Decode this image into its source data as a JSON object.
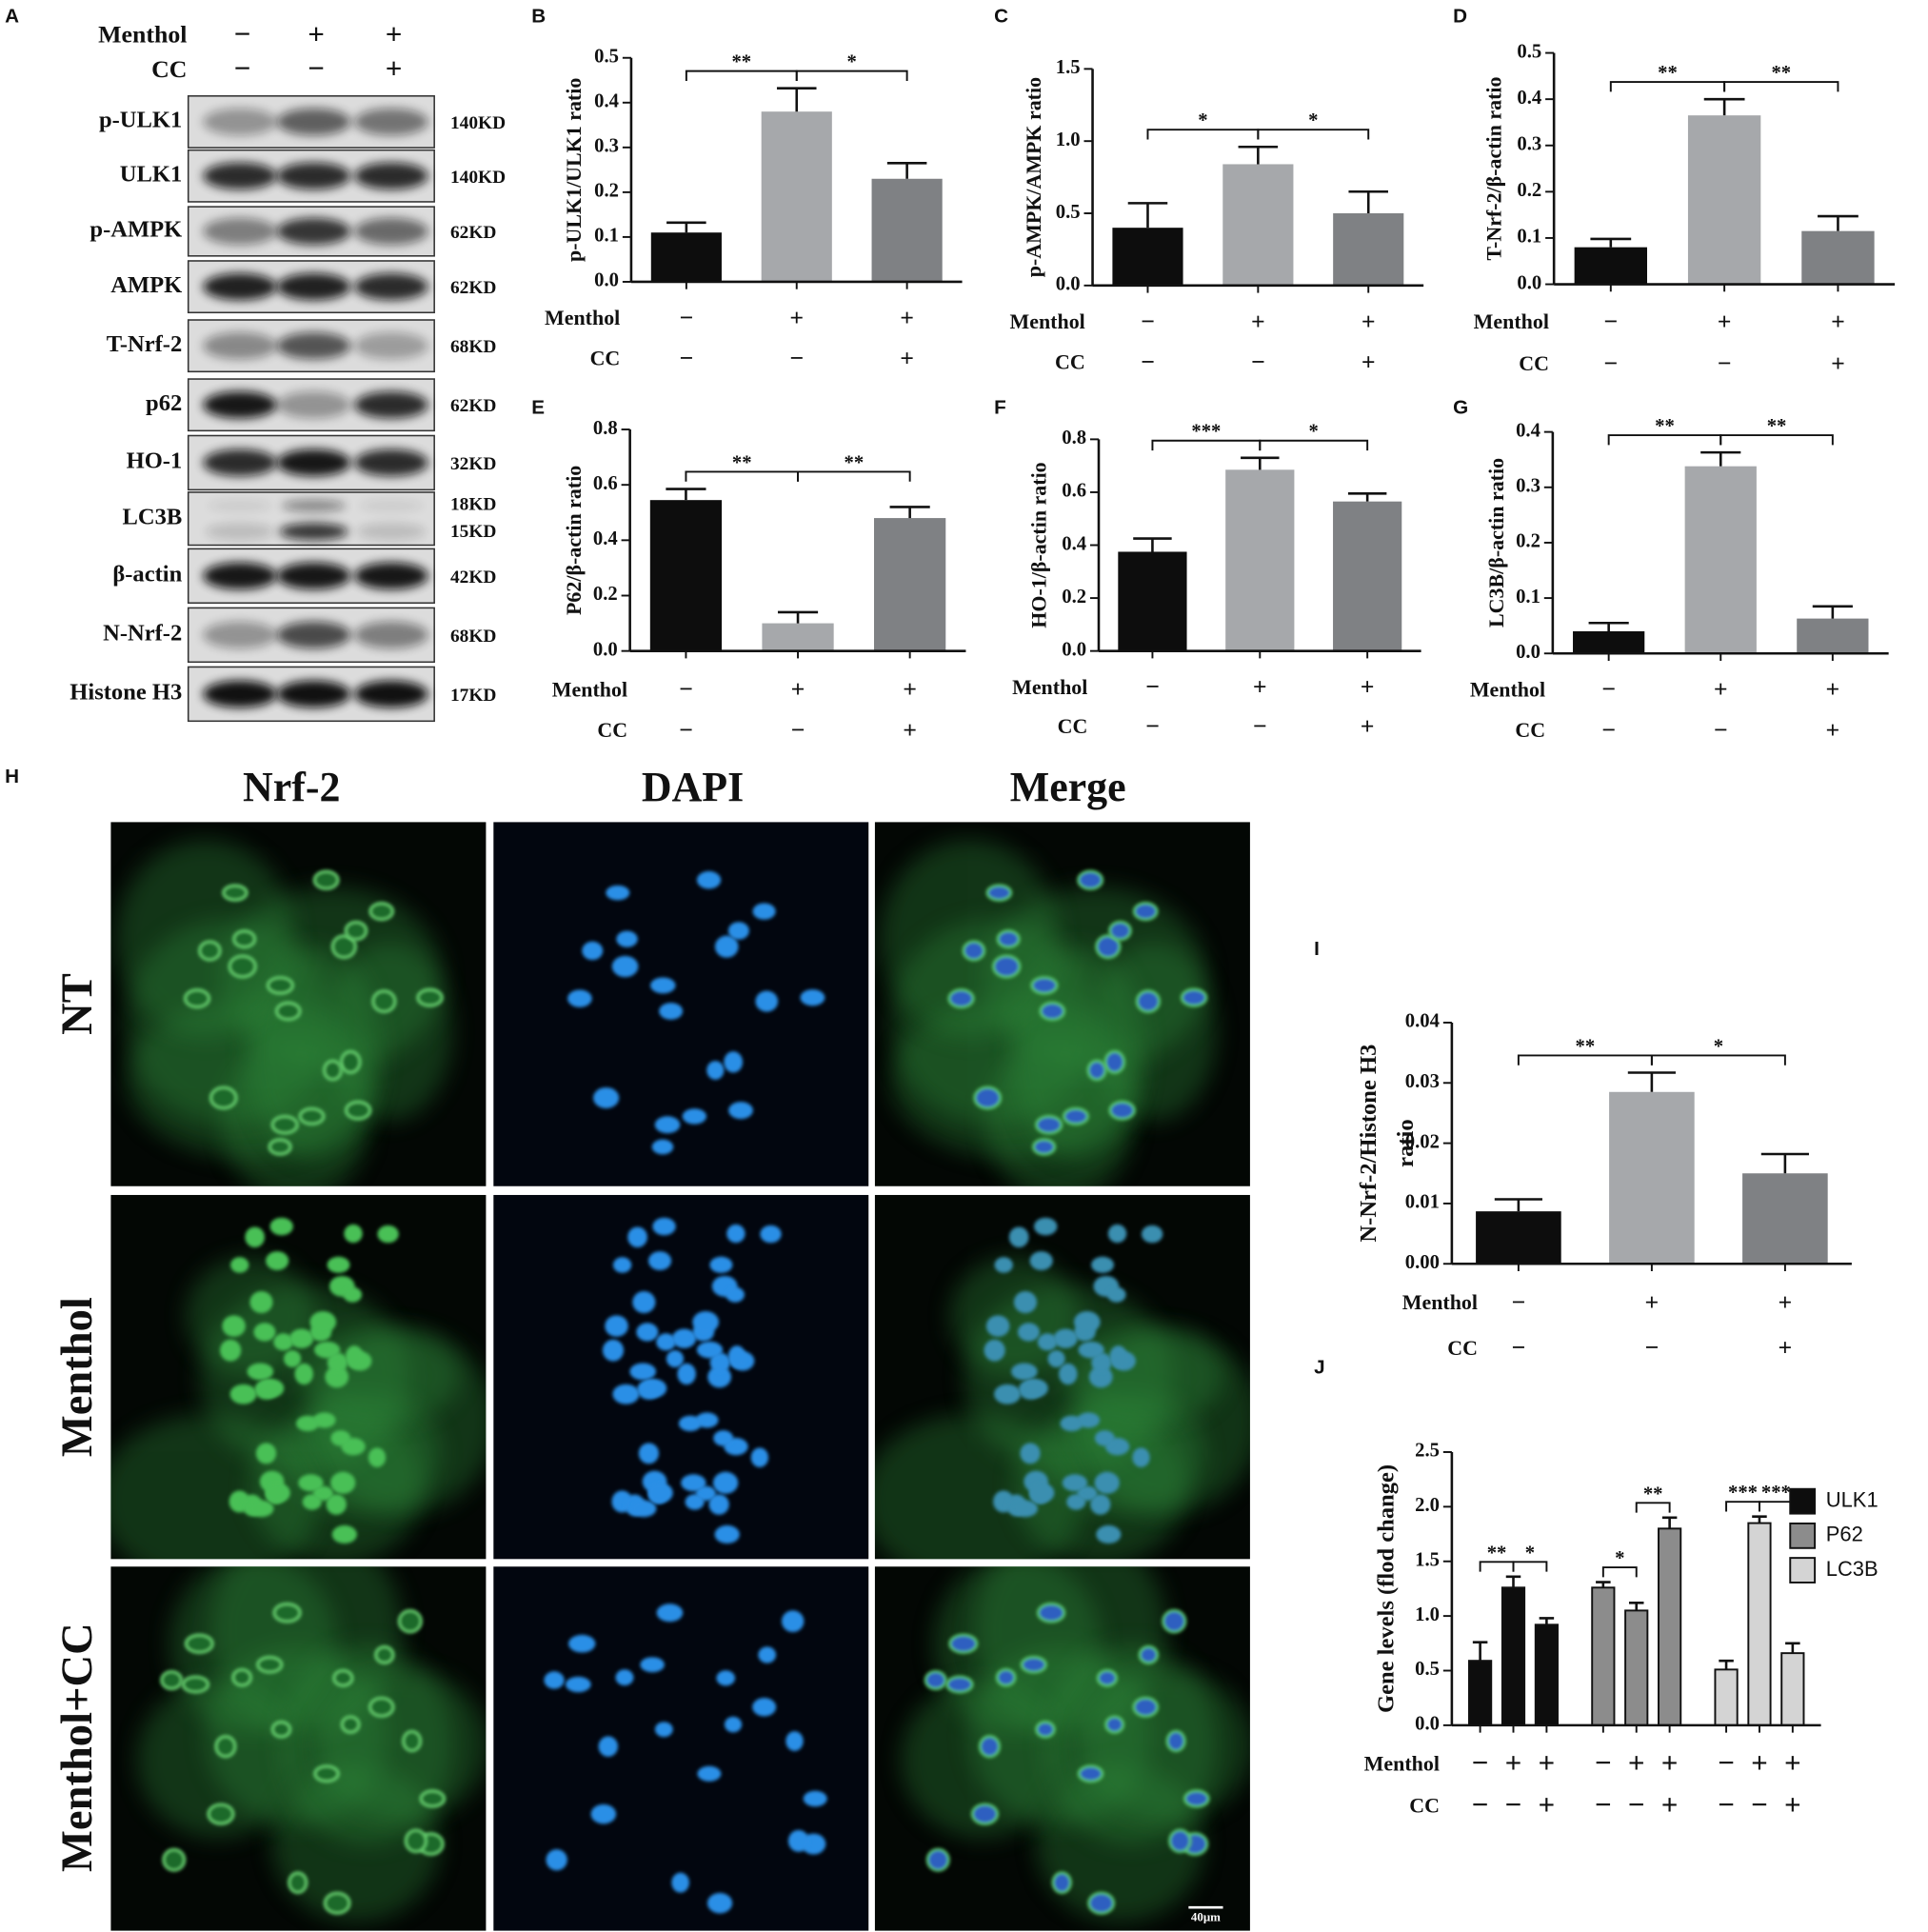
{
  "blot": {
    "panel": "A",
    "conditions": [
      {
        "label": "Menthol",
        "signs": [
          "−",
          "+",
          "+"
        ]
      },
      {
        "label": "CC",
        "signs": [
          "−",
          "−",
          "+"
        ]
      }
    ],
    "rows": [
      {
        "label": "p-ULK1",
        "sizes": [
          "140KD"
        ]
      },
      {
        "label": "ULK1",
        "sizes": [
          "140KD"
        ]
      },
      {
        "label": "p-AMPK",
        "sizes": [
          "62KD"
        ]
      },
      {
        "label": "AMPK",
        "sizes": [
          "62KD"
        ]
      },
      {
        "label": "T-Nrf-2",
        "sizes": [
          "68KD"
        ]
      },
      {
        "label": "p62",
        "sizes": [
          "62KD"
        ]
      },
      {
        "label": "HO-1",
        "sizes": [
          "32KD"
        ]
      },
      {
        "label": "LC3B",
        "sizes": [
          "18KD",
          "15KD"
        ]
      },
      {
        "label": "β-actin",
        "sizes": [
          "42KD"
        ]
      },
      {
        "label": "N-Nrf-2",
        "sizes": [
          "68KD"
        ]
      },
      {
        "label": "Histone H3",
        "sizes": [
          "17KD"
        ]
      }
    ]
  },
  "chart_data": [
    {
      "panel": "B",
      "type": "bar",
      "ylabel": "p-ULK1/ULK1 ratio",
      "values": [
        0.11,
        0.38,
        0.23
      ],
      "errors": [
        0.022,
        0.052,
        0.035
      ],
      "colors": [
        "#0d0d0d",
        "#a6a8ab",
        "#7f8184"
      ],
      "conditions": [
        {
          "label": "Menthol",
          "signs": [
            "−",
            "+",
            "+"
          ]
        },
        {
          "label": "CC",
          "signs": [
            "−",
            "−",
            "+"
          ]
        }
      ],
      "significance": [
        {
          "pair": [
            0,
            1
          ],
          "label": "**"
        },
        {
          "pair": [
            1,
            2
          ],
          "label": "*"
        }
      ],
      "ylim": [
        0,
        0.5
      ],
      "yticks": [
        {
          "value": 0,
          "label": "0.0"
        },
        0.1,
        0.2,
        0.3,
        0.4,
        0.5
      ]
    },
    {
      "panel": "C",
      "type": "bar",
      "ylabel": "p-AMPK/AMPK ratio",
      "values": [
        0.4,
        0.84,
        0.5
      ],
      "errors": [
        0.17,
        0.12,
        0.15
      ],
      "colors": [
        "#0d0d0d",
        "#a6a8ab",
        "#7f8184"
      ],
      "conditions": [
        {
          "label": "Menthol",
          "signs": [
            "−",
            "+",
            "+"
          ]
        },
        {
          "label": "CC",
          "signs": [
            "−",
            "−",
            "+"
          ]
        }
      ],
      "significance": [
        {
          "pair": [
            0,
            1
          ],
          "label": "*"
        },
        {
          "pair": [
            1,
            2
          ],
          "label": "*"
        }
      ],
      "ylim": [
        0,
        1.5
      ],
      "yticks": [
        {
          "value": 0,
          "label": "0.0"
        },
        0.5,
        {
          "value": 1,
          "label": "1.0"
        },
        1.5
      ]
    },
    {
      "panel": "D",
      "type": "bar",
      "ylabel": "T-Nrf-2/β-actin ratio",
      "values": [
        0.08,
        0.365,
        0.115
      ],
      "errors": [
        0.018,
        0.035,
        0.032
      ],
      "colors": [
        "#0d0d0d",
        "#a6a8ab",
        "#7f8184"
      ],
      "conditions": [
        {
          "label": "Menthol",
          "signs": [
            "−",
            "+",
            "+"
          ]
        },
        {
          "label": "CC",
          "signs": [
            "−",
            "−",
            "+"
          ]
        }
      ],
      "significance": [
        {
          "pair": [
            0,
            1
          ],
          "label": "**"
        },
        {
          "pair": [
            1,
            2
          ],
          "label": "**"
        }
      ],
      "ylim": [
        0,
        0.5
      ],
      "yticks": [
        {
          "value": 0,
          "label": "0.0"
        },
        0.1,
        0.2,
        0.3,
        0.4,
        0.5
      ]
    },
    {
      "panel": "E",
      "type": "bar",
      "ylabel": "P62/β-actin ratio",
      "values": [
        0.545,
        0.1,
        0.48
      ],
      "errors": [
        0.04,
        0.04,
        0.04
      ],
      "colors": [
        "#0d0d0d",
        "#a6a8ab",
        "#7f8184"
      ],
      "conditions": [
        {
          "label": "Menthol",
          "signs": [
            "−",
            "+",
            "+"
          ]
        },
        {
          "label": "CC",
          "signs": [
            "−",
            "−",
            "+"
          ]
        }
      ],
      "significance": [
        {
          "pair": [
            0,
            1
          ],
          "label": "**"
        },
        {
          "pair": [
            1,
            2
          ],
          "label": "**"
        }
      ],
      "ylim": [
        0,
        0.8
      ],
      "yticks": [
        {
          "value": 0,
          "label": "0.0"
        },
        0.2,
        0.4,
        0.6,
        0.8
      ]
    },
    {
      "panel": "F",
      "type": "bar",
      "ylabel": "HO-1/β-actin ratio",
      "values": [
        0.375,
        0.685,
        0.565
      ],
      "errors": [
        0.05,
        0.045,
        0.03
      ],
      "colors": [
        "#0d0d0d",
        "#a6a8ab",
        "#7f8184"
      ],
      "conditions": [
        {
          "label": "Menthol",
          "signs": [
            "−",
            "+",
            "+"
          ]
        },
        {
          "label": "CC",
          "signs": [
            "−",
            "−",
            "+"
          ]
        }
      ],
      "significance": [
        {
          "pair": [
            0,
            1
          ],
          "label": "***"
        },
        {
          "pair": [
            1,
            2
          ],
          "label": "*"
        }
      ],
      "ylim": [
        0,
        0.8
      ],
      "yticks": [
        {
          "value": 0,
          "label": "0.0"
        },
        0.2,
        0.4,
        0.6,
        0.8
      ]
    },
    {
      "panel": "G",
      "type": "bar",
      "ylabel": "LC3B/β-actin ratio",
      "values": [
        0.04,
        0.338,
        0.063
      ],
      "errors": [
        0.015,
        0.025,
        0.022
      ],
      "colors": [
        "#0d0d0d",
        "#a6a8ab",
        "#7f8184"
      ],
      "conditions": [
        {
          "label": "Menthol",
          "signs": [
            "−",
            "+",
            "+"
          ]
        },
        {
          "label": "CC",
          "signs": [
            "−",
            "−",
            "+"
          ]
        }
      ],
      "significance": [
        {
          "pair": [
            0,
            1
          ],
          "label": "**"
        },
        {
          "pair": [
            1,
            2
          ],
          "label": "**"
        }
      ],
      "ylim": [
        0,
        0.4
      ],
      "yticks": [
        {
          "value": 0,
          "label": "0.0"
        },
        0.1,
        0.2,
        0.3,
        0.4
      ]
    },
    {
      "panel": "I",
      "type": "bar",
      "ylabel": [
        "N-Nrf-2/Histone H3",
        "ratio"
      ],
      "values": [
        0.0087,
        0.0285,
        0.015
      ],
      "errors": [
        0.002,
        0.0032,
        0.0032
      ],
      "colors": [
        "#0d0d0d",
        "#a6a8ab",
        "#7f8184"
      ],
      "conditions": [
        {
          "label": "Menthol",
          "signs": [
            "−",
            "+",
            "+"
          ]
        },
        {
          "label": "CC",
          "signs": [
            "−",
            "−",
            "+"
          ]
        }
      ],
      "significance": [
        {
          "pair": [
            0,
            1
          ],
          "label": "**"
        },
        {
          "pair": [
            1,
            2
          ],
          "label": "*"
        }
      ],
      "ylim": [
        0,
        0.04
      ],
      "yticks": [
        {
          "value": 0,
          "label": "0.00"
        },
        0.01,
        0.02,
        0.03,
        0.04
      ]
    },
    {
      "panel": "J",
      "type": "bar",
      "ylabel": "Gene levels (flod change)",
      "series": [
        {
          "name": "ULK1",
          "color": "#0d0d0d",
          "values": [
            0.59,
            1.26,
            0.92
          ],
          "errors": [
            0.17,
            0.1,
            0.06
          ],
          "significance": [
            {
              "pair": [
                0,
                1
              ],
              "label": "**"
            },
            {
              "pair": [
                1,
                2
              ],
              "label": "*"
            }
          ]
        },
        {
          "name": "P62",
          "color": "#8c8c8c",
          "values": [
            1.26,
            1.05,
            1.8
          ],
          "errors": [
            0.05,
            0.07,
            0.1
          ],
          "significance": [
            {
              "pair": [
                0,
                1
              ],
              "label": "*"
            },
            {
              "pair": [
                1,
                2
              ],
              "label": "**"
            }
          ]
        },
        {
          "name": "LC3B",
          "color": "#d4d4d4",
          "values": [
            0.51,
            1.85,
            0.66
          ],
          "errors": [
            0.08,
            0.06,
            0.09
          ],
          "significance": [
            {
              "pair": [
                0,
                1
              ],
              "label": "***"
            },
            {
              "pair": [
                1,
                2
              ],
              "label": "***"
            }
          ]
        }
      ],
      "conditions": [
        {
          "label": "Menthol",
          "signs": [
            "−",
            "+",
            "+",
            "−",
            "+",
            "+",
            "−",
            "+",
            "+"
          ]
        },
        {
          "label": "CC",
          "signs": [
            "−",
            "−",
            "+",
            "−",
            "−",
            "+",
            "−",
            "−",
            "+"
          ]
        }
      ],
      "legend": "right",
      "ylim": [
        0,
        2.5
      ],
      "yticks": [
        {
          "value": 0,
          "label": "0.0"
        },
        0.5,
        {
          "value": 1,
          "label": "1.0"
        },
        1.5,
        {
          "value": 2,
          "label": "2.0"
        },
        2.5
      ]
    }
  ],
  "micrograph": {
    "panel": "H",
    "columns": [
      "Nrf-2",
      "DAPI",
      "Merge"
    ],
    "rows": [
      "NT",
      "Menthol",
      "Menthol+CC"
    ],
    "scale_bar": "40μm"
  }
}
